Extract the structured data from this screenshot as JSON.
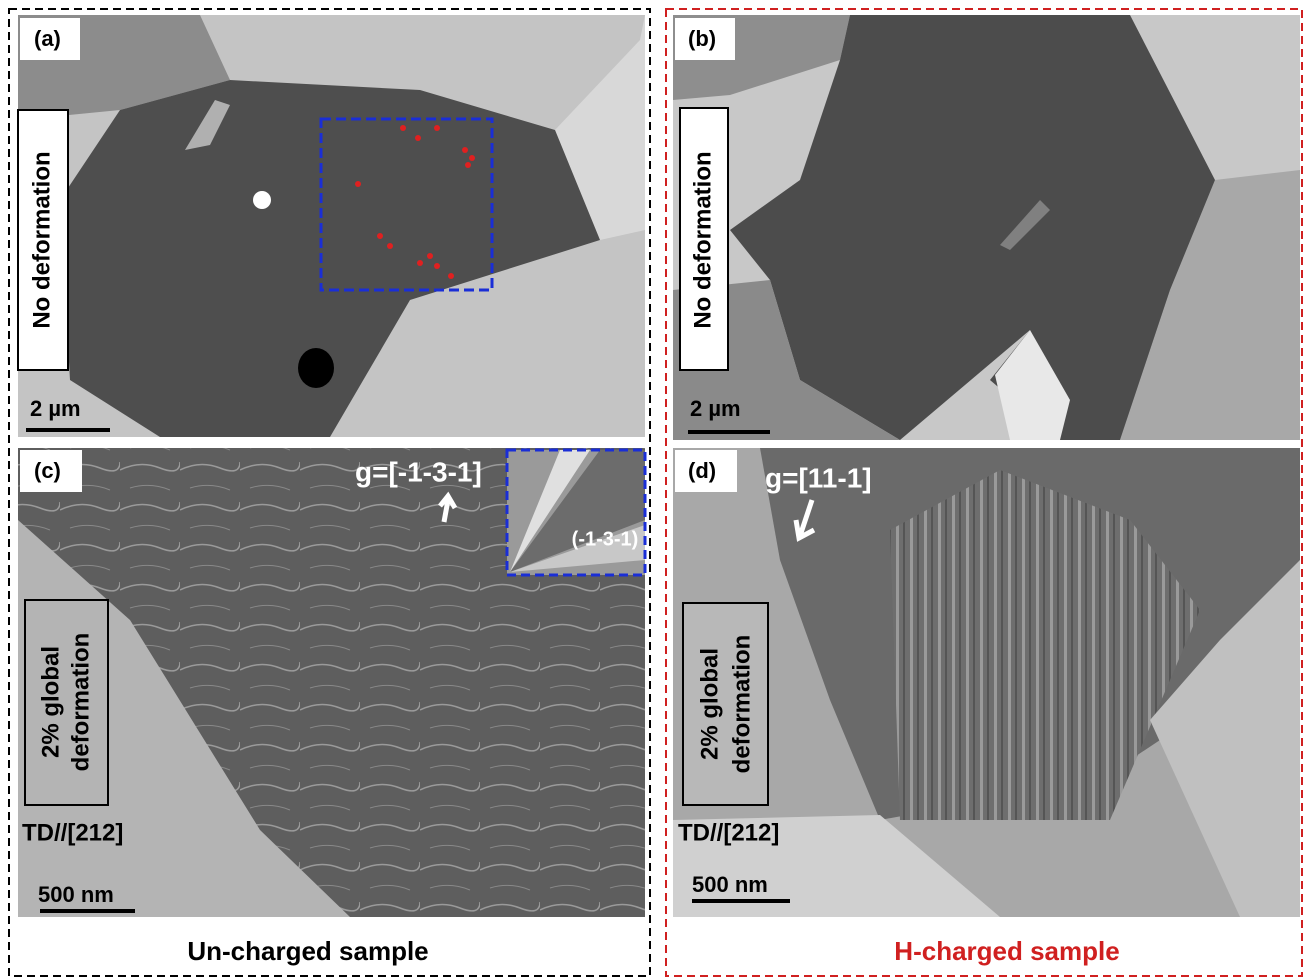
{
  "columns": [
    {
      "caption": "Un-charged sample",
      "panels": [
        {
          "label": "(a)",
          "condition": [
            "No deformation"
          ],
          "scale_bar": "2 µm"
        },
        {
          "label": "(c)",
          "g_vector": "g=[-1-3-1]",
          "inset_label": "(-1-3-1)",
          "condition": [
            "2% global",
            "deformation"
          ],
          "direction": "TD//[212]",
          "scale_bar": "500 nm"
        }
      ]
    },
    {
      "caption": "H-charged sample",
      "panels": [
        {
          "label": "(b)",
          "condition": [
            "No deformation"
          ],
          "scale_bar": "2 µm"
        },
        {
          "label": "(d)",
          "g_vector": "g=[11-1]",
          "condition": [
            "2% global",
            "deformation"
          ],
          "direction": "TD//[212]",
          "scale_bar": "500 nm"
        }
      ]
    }
  ]
}
